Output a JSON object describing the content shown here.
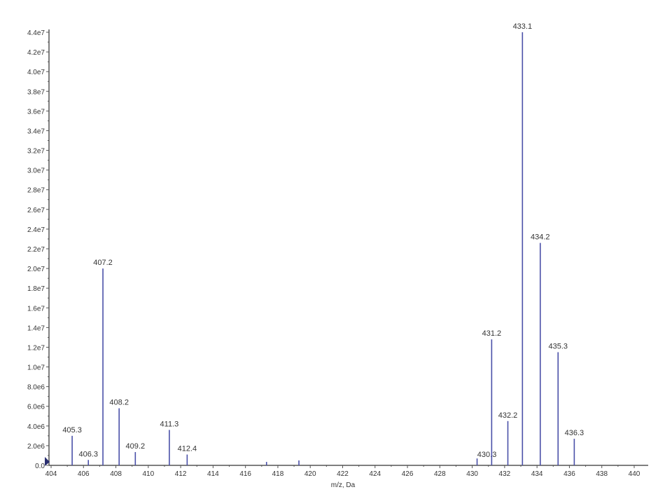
{
  "chart_data": {
    "type": "bar",
    "subtype": "mass-spectrum-stick",
    "xlabel": "m/z, Da",
    "ylabel": "",
    "xlim": [
      404,
      440
    ],
    "ylim": [
      0,
      44000000
    ],
    "xticks": [
      404,
      406,
      408,
      410,
      412,
      414,
      416,
      418,
      420,
      422,
      424,
      426,
      428,
      430,
      432,
      434,
      436,
      438,
      440
    ],
    "yticks": [
      "0.0",
      "2.0e6",
      "4.0e6",
      "6.0e6",
      "8.0e6",
      "1.0e7",
      "1.2e7",
      "1.4e7",
      "1.6e7",
      "1.8e7",
      "2.0e7",
      "2.2e7",
      "2.4e7",
      "2.6e7",
      "2.8e7",
      "3.0e7",
      "3.2e7",
      "3.4e7",
      "3.6e7",
      "3.8e7",
      "4.0e7",
      "4.2e7",
      "4.4e7"
    ],
    "grid": false,
    "peaks": [
      {
        "x": 405.3,
        "y": 3000000,
        "label": "405.3"
      },
      {
        "x": 406.3,
        "y": 550000,
        "label": "406.3"
      },
      {
        "x": 407.2,
        "y": 20000000,
        "label": "407.2"
      },
      {
        "x": 408.2,
        "y": 5800000,
        "label": "408.2"
      },
      {
        "x": 409.2,
        "y": 1350000,
        "label": "409.2"
      },
      {
        "x": 411.3,
        "y": 3600000,
        "label": "411.3"
      },
      {
        "x": 412.4,
        "y": 1100000,
        "label": "412.4"
      },
      {
        "x": 417.3,
        "y": 350000,
        "label": ""
      },
      {
        "x": 419.3,
        "y": 500000,
        "label": ""
      },
      {
        "x": 430.3,
        "y": 700000,
        "label": "430.3"
      },
      {
        "x": 431.2,
        "y": 12800000,
        "label": "431.2"
      },
      {
        "x": 432.2,
        "y": 4500000,
        "label": "432.2"
      },
      {
        "x": 433.1,
        "y": 44000000,
        "label": "433.1"
      },
      {
        "x": 434.2,
        "y": 22600000,
        "label": "434.2"
      },
      {
        "x": 435.3,
        "y": 11500000,
        "label": "435.3"
      },
      {
        "x": 436.3,
        "y": 2700000,
        "label": "436.3"
      }
    ],
    "colors": {
      "peak": "#4a50a8",
      "axis": "#555555"
    }
  }
}
